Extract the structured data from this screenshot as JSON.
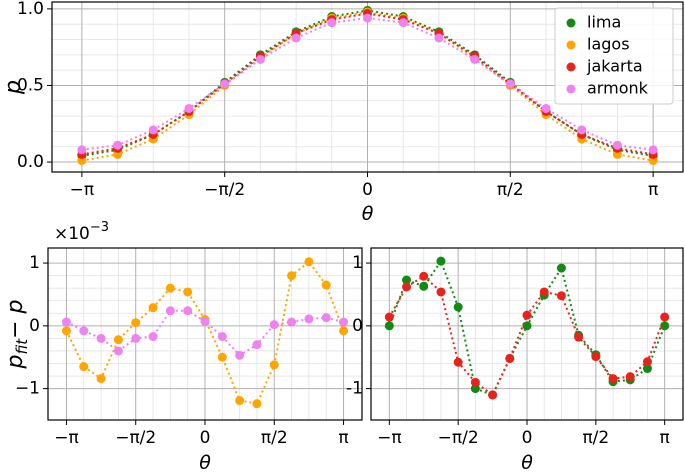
{
  "chart_data": [
    {
      "type": "line",
      "xlabel": "θ",
      "ylabel": "p",
      "x": [
        -3.1416,
        -2.7489,
        -2.3562,
        -1.9635,
        -1.5708,
        -1.1781,
        -0.7854,
        -0.3927,
        0,
        0.3927,
        0.7854,
        1.1781,
        1.5708,
        1.9635,
        2.3562,
        2.7489,
        3.1416
      ],
      "xlim": [
        -3.47,
        3.47
      ],
      "xticks": [
        {
          "value": -3.1416,
          "label": "−π"
        },
        {
          "value": -1.5708,
          "label": "−π/2"
        },
        0,
        {
          "value": 1.5708,
          "label": "π/2"
        },
        {
          "value": 3.1416,
          "label": "π"
        }
      ],
      "ylim": [
        -0.065,
        1.045
      ],
      "yticks": [
        {
          "value": 0,
          "label": "0.0"
        },
        {
          "value": 0.5,
          "label": "0.5"
        },
        {
          "value": 1,
          "label": "1.0"
        }
      ],
      "grid": true,
      "legend": "upper right",
      "series": [
        {
          "name": "lima",
          "color": "#138a13",
          "values": [
            0.04,
            0.08,
            0.18,
            0.33,
            0.52,
            0.7,
            0.85,
            0.95,
            0.99,
            0.95,
            0.85,
            0.7,
            0.52,
            0.33,
            0.18,
            0.08,
            0.04
          ]
        },
        {
          "name": "lagos",
          "color": "#ffa500",
          "values": [
            0.01,
            0.05,
            0.15,
            0.31,
            0.5,
            0.68,
            0.84,
            0.94,
            0.98,
            0.94,
            0.84,
            0.68,
            0.5,
            0.31,
            0.15,
            0.05,
            0.01
          ]
        },
        {
          "name": "jakarta",
          "color": "#e8231c",
          "values": [
            0.05,
            0.09,
            0.18,
            0.33,
            0.51,
            0.69,
            0.84,
            0.93,
            0.97,
            0.93,
            0.84,
            0.69,
            0.51,
            0.33,
            0.18,
            0.09,
            0.05
          ]
        },
        {
          "name": "armonk",
          "color": "#ee82ee",
          "values": [
            0.08,
            0.11,
            0.21,
            0.35,
            0.51,
            0.67,
            0.81,
            0.91,
            0.94,
            0.91,
            0.81,
            0.67,
            0.51,
            0.35,
            0.21,
            0.11,
            0.08
          ]
        }
      ]
    },
    {
      "type": "line",
      "xlabel": "θ",
      "ylabel": [
        "p",
        "fit",
        "− p"
      ],
      "yoffset": [
        "×10",
        "−3"
      ],
      "x": [
        -3.1416,
        -2.7489,
        -2.3562,
        -1.9635,
        -1.5708,
        -1.1781,
        -0.7854,
        -0.3927,
        0,
        0.3927,
        0.7854,
        1.1781,
        1.5708,
        1.9635,
        2.3562,
        2.7489,
        3.1416
      ],
      "xlim": [
        -3.56,
        3.56
      ],
      "xticks": [
        {
          "value": -3.1416,
          "label": "−π"
        },
        {
          "value": -1.5708,
          "label": "−π/2"
        },
        0,
        {
          "value": 1.5708,
          "label": "π/2"
        },
        {
          "value": 3.1416,
          "label": "π"
        }
      ],
      "ylim": [
        -1.5,
        1.24
      ],
      "yticks": [
        {
          "value": -1,
          "label": "−1"
        },
        0,
        1
      ],
      "grid": true,
      "series": [
        {
          "name": "lagos",
          "color": "#ffa500",
          "values": [
            -0.08,
            -0.65,
            -0.84,
            -0.22,
            0.05,
            0.29,
            0.6,
            0.54,
            0.1,
            -0.5,
            -1.19,
            -1.24,
            -0.62,
            0.8,
            1.02,
            0.65,
            -0.08
          ]
        },
        {
          "name": "armonk",
          "color": "#ee82ee",
          "values": [
            0.06,
            -0.08,
            -0.2,
            -0.4,
            -0.2,
            -0.17,
            0.24,
            0.24,
            0.07,
            -0.17,
            -0.47,
            -0.3,
            0.02,
            0.06,
            0.11,
            0.13,
            0.06
          ]
        }
      ]
    },
    {
      "type": "line",
      "xlabel": "θ",
      "x": [
        -3.1416,
        -2.7489,
        -2.3562,
        -1.9635,
        -1.5708,
        -1.1781,
        -0.7854,
        -0.3927,
        0,
        0.3927,
        0.7854,
        1.1781,
        1.5708,
        1.9635,
        2.3562,
        2.7489,
        3.1416
      ],
      "xlim": [
        -3.56,
        3.56
      ],
      "xticks": [
        {
          "value": -3.1416,
          "label": "−π"
        },
        {
          "value": -1.5708,
          "label": "−π/2"
        },
        0,
        {
          "value": 1.5708,
          "label": "π/2"
        },
        {
          "value": 3.1416,
          "label": "π"
        }
      ],
      "ylim": [
        -1.5,
        1.24
      ],
      "yticks": [
        -1,
        0,
        1
      ],
      "grid": true,
      "series": [
        {
          "name": "lima",
          "color": "#138a13",
          "values": [
            0.0,
            0.73,
            0.63,
            1.03,
            0.3,
            -1.0,
            -1.1,
            -0.52,
            0.0,
            0.49,
            0.92,
            -0.15,
            -0.46,
            -0.89,
            -0.86,
            -0.68,
            0.0
          ]
        },
        {
          "name": "jakarta",
          "color": "#e8231c",
          "values": [
            0.14,
            0.62,
            0.79,
            0.54,
            -0.58,
            -0.9,
            -1.1,
            -0.52,
            0.17,
            0.54,
            0.48,
            -0.18,
            -0.49,
            -0.84,
            -0.81,
            -0.57,
            0.14
          ]
        }
      ]
    }
  ]
}
